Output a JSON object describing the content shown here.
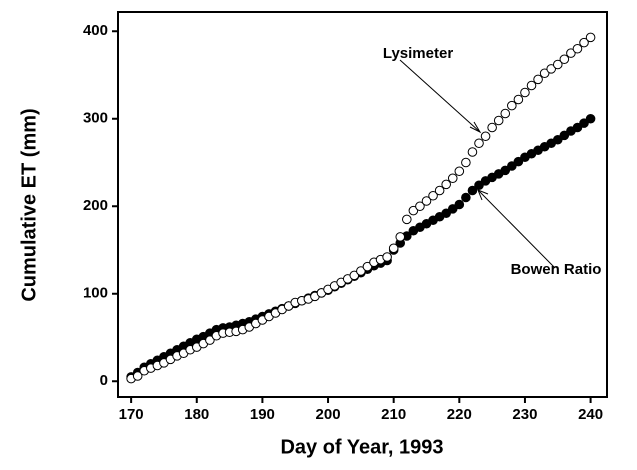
{
  "chart_data": {
    "type": "scatter",
    "xlabel": "Day of Year, 1993",
    "ylabel": "Cumulative ET (mm)",
    "xlim": [
      168,
      242.5
    ],
    "ylim": [
      -18,
      422
    ],
    "xticks": [
      170,
      180,
      190,
      200,
      210,
      220,
      230,
      240
    ],
    "yticks": [
      0,
      100,
      200,
      300,
      400
    ],
    "x": [
      170,
      171,
      172,
      173,
      174,
      175,
      176,
      177,
      178,
      179,
      180,
      181,
      182,
      183,
      184,
      185,
      186,
      187,
      188,
      189,
      190,
      191,
      192,
      193,
      194,
      195,
      196,
      197,
      198,
      199,
      200,
      201,
      202,
      203,
      204,
      205,
      206,
      207,
      208,
      209,
      210,
      211,
      212,
      213,
      214,
      215,
      216,
      217,
      218,
      219,
      220,
      221,
      222,
      223,
      224,
      225,
      226,
      227,
      228,
      229,
      230,
      231,
      232,
      233,
      234,
      235,
      236,
      237,
      238,
      239,
      240
    ],
    "series": [
      {
        "name": "Bowen Ratio",
        "color": "#000000",
        "filled": true,
        "values": [
          5,
          10,
          16,
          20,
          24,
          28,
          32,
          36,
          40,
          44,
          48,
          51,
          55,
          59,
          61,
          62,
          64,
          66,
          68,
          71,
          74,
          77,
          80,
          83,
          86,
          89,
          92,
          95,
          98,
          101,
          104,
          108,
          112,
          116,
          120,
          124,
          128,
          132,
          135,
          138,
          150,
          158,
          166,
          172,
          176,
          180,
          184,
          188,
          192,
          197,
          202,
          210,
          218,
          224,
          229,
          233,
          237,
          241,
          246,
          251,
          256,
          260,
          264,
          268,
          272,
          276,
          281,
          286,
          290,
          295,
          300
        ]
      },
      {
        "name": "Lysimeter",
        "color": "#000000",
        "filled": false,
        "values": [
          3,
          6,
          12,
          15,
          18,
          21,
          25,
          29,
          32,
          36,
          39,
          43,
          47,
          52,
          55,
          56,
          57,
          59,
          62,
          66,
          70,
          74,
          78,
          82,
          86,
          90,
          92,
          94,
          97,
          101,
          105,
          109,
          113,
          117,
          121,
          126,
          131,
          136,
          139,
          142,
          152,
          165,
          185,
          195,
          200,
          206,
          212,
          218,
          225,
          232,
          240,
          250,
          262,
          272,
          280,
          290,
          298,
          306,
          315,
          322,
          330,
          338,
          345,
          352,
          357,
          362,
          368,
          375,
          380,
          387,
          393
        ]
      }
    ]
  }
}
